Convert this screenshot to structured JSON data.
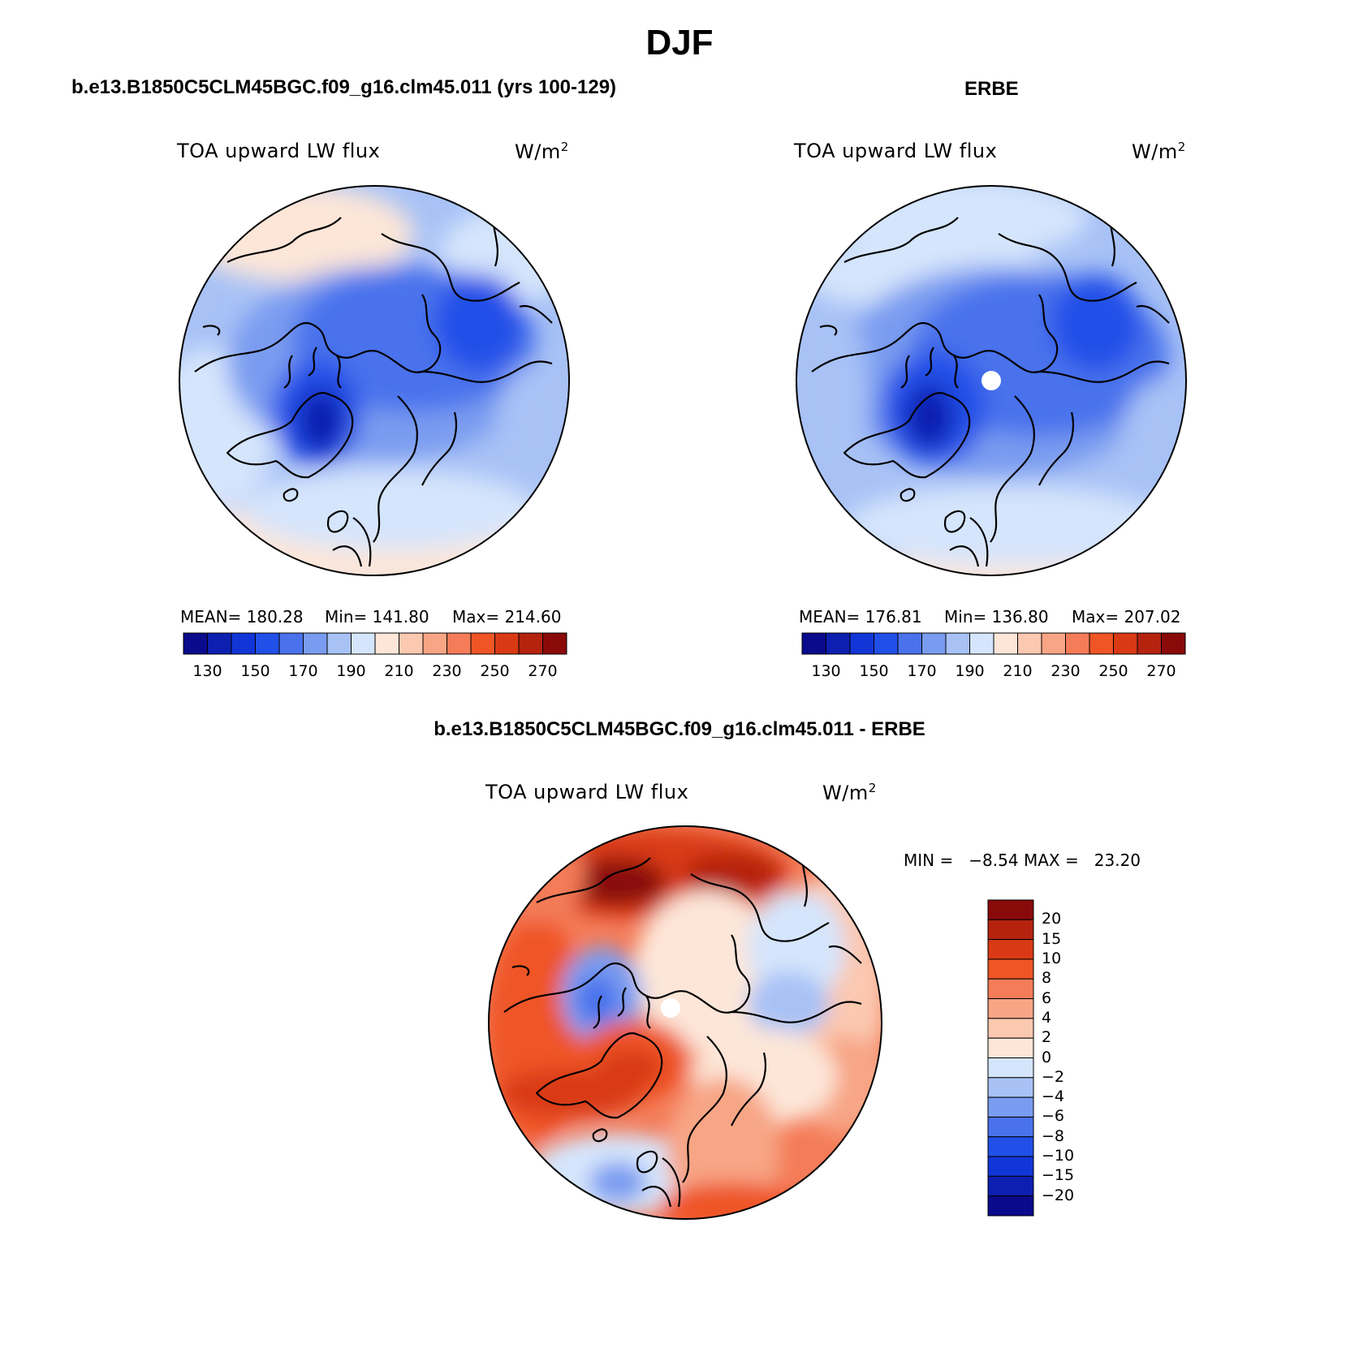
{
  "title": "DJF",
  "panels": [
    {
      "name": "model",
      "title": "b.e13.B1850C5CLM45BGC.f09_g16.clm45.011 (yrs 100-129)",
      "variable": "TOA upward LW flux",
      "units": "W/m",
      "units_sup": "2",
      "stats": {
        "mean": "MEAN= 180.28",
        "min": "Min= 141.80",
        "max": "Max= 214.60"
      }
    },
    {
      "name": "obs",
      "title": "ERBE",
      "variable": "TOA upward LW flux",
      "units": "W/m",
      "units_sup": "2",
      "stats": {
        "mean": "MEAN= 176.81",
        "min": "Min= 136.80",
        "max": "Max= 207.02"
      }
    },
    {
      "name": "diff",
      "title": "b.e13.B1850C5CLM45BGC.f09_g16.clm45.011 - ERBE",
      "variable": "TOA upward LW flux",
      "units": "W/m",
      "units_sup": "2",
      "stats": {
        "minmax": "MIN =   −8.54 MAX =   23.20"
      }
    }
  ],
  "abs_colorbar": {
    "colors": [
      "#0a0a8c",
      "#0d1fb0",
      "#1235d8",
      "#2150e8",
      "#4a72ec",
      "#7a9cf0",
      "#a8c2f6",
      "#d5e5fc",
      "#fde6d8",
      "#fbc8b0",
      "#f7a585",
      "#f47c58",
      "#ef5525",
      "#d93a14",
      "#b5230f",
      "#8a0a0a"
    ],
    "labels": [
      "130",
      "150",
      "170",
      "190",
      "210",
      "230",
      "250",
      "270"
    ]
  },
  "diff_colorbar": {
    "colors": [
      "#8a0a0a",
      "#b5230f",
      "#d93a14",
      "#ef5525",
      "#f47c58",
      "#f7a585",
      "#fbc8b0",
      "#fde6d8",
      "#d5e5fc",
      "#a8c2f6",
      "#7a9cf0",
      "#4a72ec",
      "#2150e8",
      "#1235d8",
      "#0d1fb0",
      "#0a0a8c"
    ],
    "labels": [
      "20",
      "15",
      "10",
      "8",
      "6",
      "4",
      "2",
      "0",
      "−2",
      "−4",
      "−6",
      "−8",
      "−10",
      "−15",
      "−20"
    ]
  }
}
